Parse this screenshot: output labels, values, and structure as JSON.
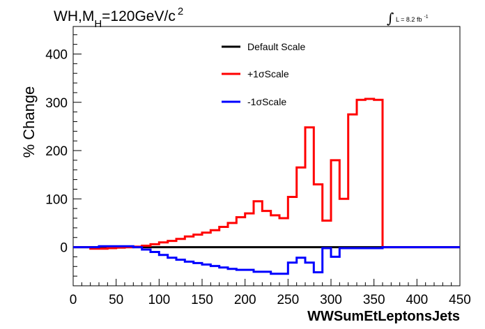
{
  "chart_data": {
    "type": "line",
    "title": "WH,M_H=120GeV/c^2",
    "title_parts": {
      "a": "WH,M",
      "sub": "H",
      "b": "=120GeV/c",
      "sup": "2"
    },
    "luminosity": {
      "text": "L = 8.2 fb",
      "sup": "-1",
      "integral": "∫"
    },
    "xlabel": "WWSumEtLeptonsJets",
    "ylabel": "% Change",
    "xlim": [
      0,
      450
    ],
    "ylim": [
      -80,
      470
    ],
    "xticks": [
      0,
      50,
      100,
      150,
      200,
      250,
      300,
      350,
      400,
      450
    ],
    "yticks": [
      0,
      100,
      200,
      300,
      400
    ],
    "grid": false,
    "legend_position": "top-center",
    "bin_edges": [
      0,
      10,
      20,
      30,
      40,
      50,
      60,
      70,
      80,
      90,
      100,
      110,
      120,
      130,
      140,
      150,
      160,
      170,
      180,
      190,
      200,
      210,
      220,
      230,
      240,
      250,
      260,
      270,
      280,
      290,
      300,
      310,
      320,
      330,
      340,
      350,
      360,
      370,
      380,
      390,
      400,
      410,
      420,
      430,
      440,
      450
    ],
    "series": [
      {
        "name": "Default Scale",
        "color": "#000000",
        "values": [
          0,
          0,
          0,
          0,
          0,
          0,
          0,
          0,
          0,
          0,
          0,
          0,
          0,
          0,
          0,
          0,
          0,
          0,
          0,
          0,
          0,
          0,
          0,
          0,
          0,
          0,
          0,
          0,
          0,
          0,
          0,
          0,
          0,
          0,
          0,
          0,
          0,
          0,
          0,
          0,
          0,
          0,
          0,
          0,
          0
        ]
      },
      {
        "name": "+1σScale",
        "color": "#ff0000",
        "values": [
          0,
          0,
          -3,
          -3,
          -2,
          -1,
          0,
          1,
          3,
          6,
          10,
          13,
          17,
          22,
          26,
          30,
          35,
          42,
          50,
          62,
          70,
          95,
          75,
          66,
          60,
          104,
          165,
          248,
          130,
          55,
          180,
          100,
          275,
          305,
          307,
          305,
          0,
          0,
          0,
          0,
          0,
          0,
          0,
          0,
          0
        ]
      },
      {
        "name": "-1σScale",
        "color": "#0000ff",
        "values": [
          0,
          0,
          0,
          2,
          2,
          2,
          2,
          0,
          -5,
          -10,
          -16,
          -22,
          -26,
          -30,
          -33,
          -36,
          -39,
          -42,
          -45,
          -47,
          -47,
          -51,
          -51,
          -55,
          -55,
          -32,
          -22,
          -32,
          -52,
          -2,
          -20,
          -2,
          -2,
          -2,
          -2,
          -2,
          0,
          0,
          0,
          0,
          0,
          0,
          0,
          0,
          0
        ]
      }
    ]
  }
}
